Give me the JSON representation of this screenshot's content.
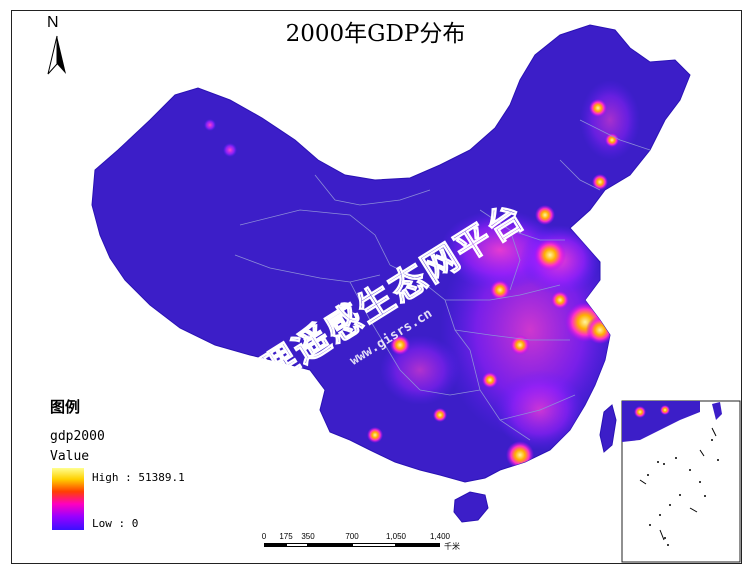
{
  "map": {
    "title": "2000年GDP分布",
    "north_label": "N",
    "watermark_text": "地理遥感生态网平台",
    "watermark_url": "www.gisrs.cn"
  },
  "legend": {
    "title": "图例",
    "layer": "gdp2000",
    "field": "Value",
    "high_label": "High : 51389.1",
    "low_label": "Low : 0",
    "high_value": 51389.1,
    "low_value": 0,
    "ramp_colors": [
      "#ffff90",
      "#ffd000",
      "#ff4000",
      "#ff00c0",
      "#9a00ff",
      "#3a10ff"
    ]
  },
  "scale_bar": {
    "ticks": [
      "0",
      "175",
      "350",
      "700",
      "1,050",
      "1,400"
    ],
    "unit": "千米"
  },
  "colors": {
    "land_base": "#3c1ec8",
    "land_dark": "#2a12b4",
    "boundary": "#8c8cd8",
    "hot": "#ff30c8",
    "hotter": "#ffb000",
    "hottest": "#fff4a0"
  }
}
